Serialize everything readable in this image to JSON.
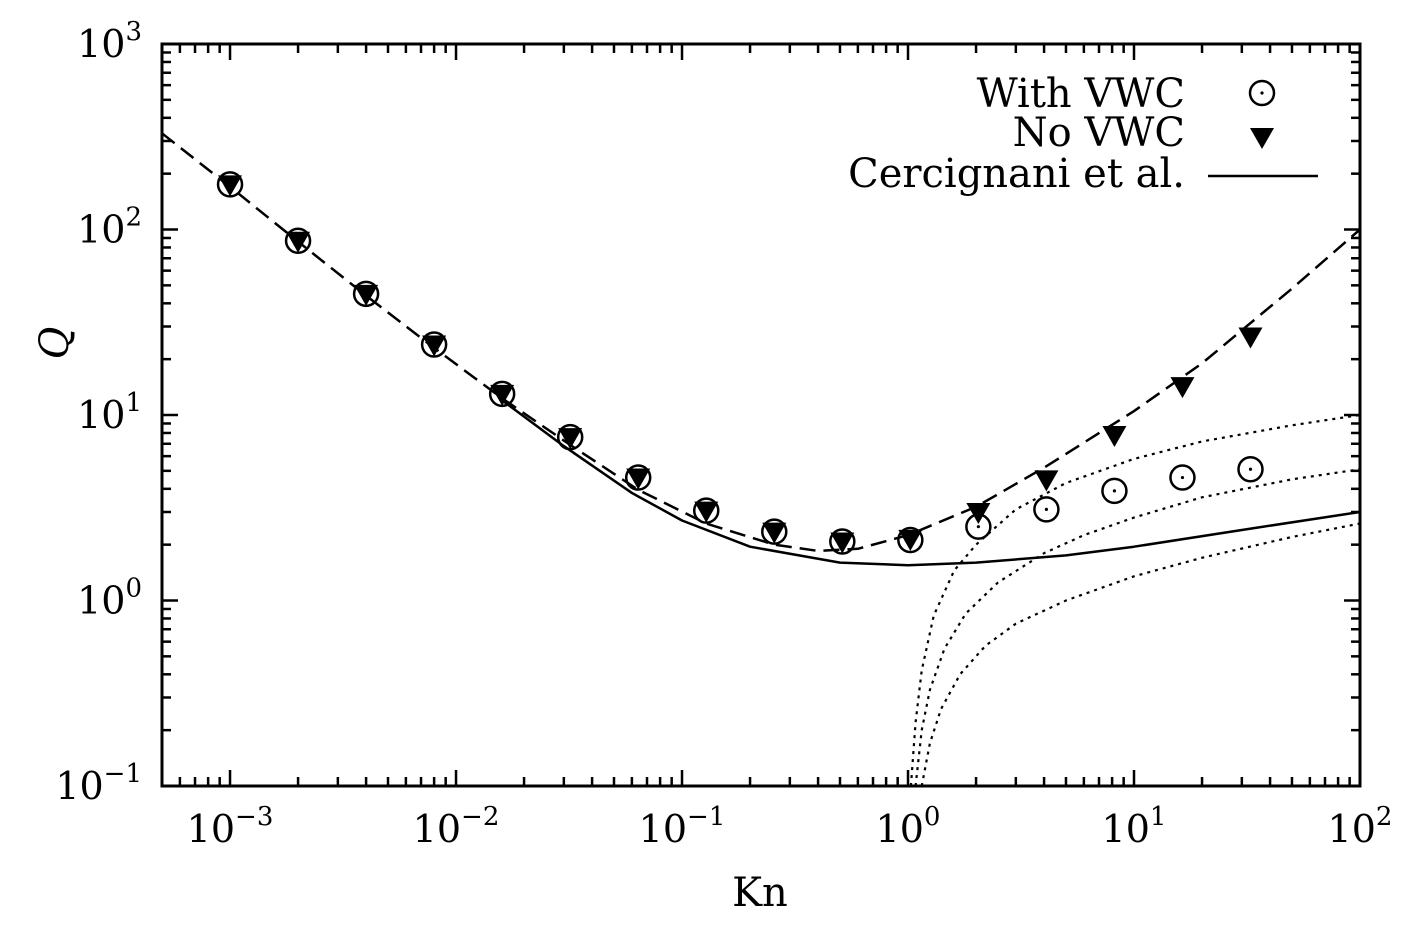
{
  "chart_data": {
    "type": "scatter",
    "xlabel": "Kn",
    "ylabel": "Q",
    "xscale": "log",
    "yscale": "log",
    "xlim": [
      0.0005,
      100
    ],
    "ylim": [
      0.1,
      1000
    ],
    "x_ticks": [
      {
        "value": 0.001,
        "base": "10",
        "exp": "−3"
      },
      {
        "value": 0.01,
        "base": "10",
        "exp": "−2"
      },
      {
        "value": 0.1,
        "base": "10",
        "exp": "−1"
      },
      {
        "value": 1,
        "base": "10",
        "exp": "0"
      },
      {
        "value": 10,
        "base": "10",
        "exp": "1"
      },
      {
        "value": 100,
        "base": "10",
        "exp": "2"
      }
    ],
    "y_ticks": [
      {
        "value": 0.1,
        "base": "10",
        "exp": "−1"
      },
      {
        "value": 1,
        "base": "10",
        "exp": "0"
      },
      {
        "value": 10,
        "base": "10",
        "exp": "1"
      },
      {
        "value": 100,
        "base": "10",
        "exp": "2"
      },
      {
        "value": 1000,
        "base": "10",
        "exp": "3"
      }
    ],
    "grid": false,
    "legend_position": "top-right",
    "series": [
      {
        "name": "With VWC",
        "marker": "open-circle",
        "x": [
          0.001,
          0.002,
          0.004,
          0.008,
          0.016,
          0.032,
          0.064,
          0.128,
          0.256,
          0.512,
          1.024,
          2.048,
          4.096,
          8.192,
          16.384,
          32.768
        ],
        "y": [
          175,
          87,
          45,
          24,
          13,
          7.6,
          4.6,
          3.05,
          2.35,
          2.08,
          2.12,
          2.5,
          3.1,
          3.9,
          4.6,
          5.1
        ]
      },
      {
        "name": "No VWC",
        "marker": "filled-triangle-down",
        "x": [
          0.001,
          0.002,
          0.004,
          0.008,
          0.016,
          0.032,
          0.064,
          0.128,
          0.256,
          0.512,
          1.024,
          2.048,
          4.096,
          8.192,
          16.384,
          32.768
        ],
        "y": [
          175,
          87,
          45,
          24,
          13,
          7.6,
          4.6,
          3.05,
          2.35,
          2.08,
          2.15,
          3.0,
          4.5,
          7.8,
          14.3,
          26.5
        ]
      },
      {
        "name": "Cercignani et al.",
        "style": "solid",
        "x": [
          0.016,
          0.03,
          0.06,
          0.1,
          0.2,
          0.5,
          1.0,
          2.0,
          5.0,
          10,
          30,
          100
        ],
        "y": [
          12,
          6.8,
          3.8,
          2.7,
          1.95,
          1.6,
          1.55,
          1.6,
          1.75,
          1.95,
          2.4,
          3.0
        ]
      },
      {
        "style": "dashed",
        "x": [
          0.0005,
          0.001,
          0.002,
          0.004,
          0.008,
          0.016,
          0.032,
          0.064,
          0.128,
          0.256,
          0.4,
          0.6,
          1.0,
          2.0,
          4.0,
          10,
          20,
          50,
          100
        ],
        "y": [
          330,
          170,
          86,
          44,
          23,
          12.3,
          6.9,
          3.95,
          2.6,
          2.0,
          1.85,
          1.9,
          2.25,
          3.2,
          5.2,
          10.5,
          19,
          48,
          100
        ]
      },
      {
        "style": "dotted",
        "x": [
          1.03,
          1.08,
          1.15,
          1.3,
          1.6,
          2.0,
          3.0,
          5.0,
          10,
          20,
          50,
          100
        ],
        "y": [
          0.1,
          0.22,
          0.42,
          0.83,
          1.45,
          2.0,
          3.1,
          4.3,
          5.8,
          7.2,
          8.8,
          10.0
        ]
      },
      {
        "style": "dotted",
        "x": [
          1.08,
          1.15,
          1.25,
          1.45,
          1.8,
          2.5,
          4.0,
          6.0,
          10,
          20,
          50,
          100
        ],
        "y": [
          0.1,
          0.2,
          0.33,
          0.55,
          0.85,
          1.25,
          1.8,
          2.25,
          2.8,
          3.6,
          4.5,
          5.1
        ]
      },
      {
        "style": "dotted",
        "x": [
          1.15,
          1.25,
          1.4,
          1.7,
          2.2,
          3.0,
          5.0,
          10,
          20,
          50,
          100
        ],
        "y": [
          0.1,
          0.17,
          0.26,
          0.4,
          0.57,
          0.75,
          1.0,
          1.35,
          1.7,
          2.2,
          2.6
        ]
      }
    ]
  }
}
